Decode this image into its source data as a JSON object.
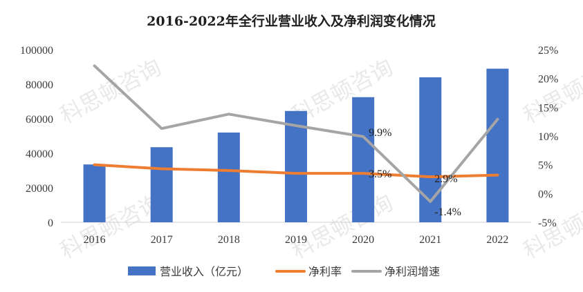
{
  "chart_data": {
    "type": "bar",
    "title": "2016-2022年全行业营业收入及净利润变化情况",
    "categories": [
      "2016",
      "2017",
      "2018",
      "2019",
      "2020",
      "2021",
      "2022"
    ],
    "y_left": {
      "ticks": [
        "0",
        "20000",
        "40000",
        "60000",
        "80000",
        "100000"
      ],
      "ylim": [
        0,
        100000
      ]
    },
    "y_right": {
      "ticks": [
        "-5%",
        "0%",
        "5%",
        "10%",
        "15%",
        "20%",
        "25%"
      ],
      "ylim": [
        -5,
        25
      ]
    },
    "series": [
      {
        "name": "营业收入（亿元）",
        "type": "bar",
        "axis": "left",
        "color": "#4472C4",
        "values": [
          33500,
          43500,
          52000,
          64500,
          72500,
          84000,
          89000
        ]
      },
      {
        "name": "净利率",
        "type": "line",
        "axis": "right",
        "color": "#ED7D31",
        "values": [
          5.0,
          4.3,
          4.0,
          3.5,
          3.5,
          2.9,
          3.2
        ]
      },
      {
        "name": "净利润增速",
        "type": "line",
        "axis": "right",
        "color": "#A5A5A5",
        "values": [
          22.2,
          11.3,
          13.8,
          11.8,
          9.9,
          -1.4,
          12.9
        ]
      }
    ],
    "data_labels": [
      {
        "series": "净利润增速",
        "category": "2020",
        "text": "9.9%"
      },
      {
        "series": "净利率",
        "category": "2020",
        "text": "3.5%"
      },
      {
        "series": "净利率",
        "category": "2021",
        "text": "2.9%"
      },
      {
        "series": "净利润增速",
        "category": "2021",
        "text": "-1.4%"
      }
    ],
    "legend": {
      "position": "bottom"
    },
    "grid": false
  },
  "watermark": {
    "text": "科思顿咨询"
  }
}
